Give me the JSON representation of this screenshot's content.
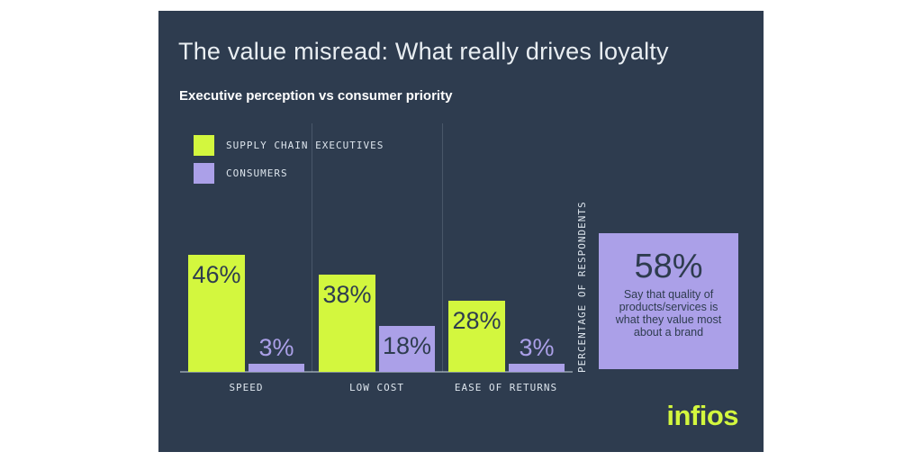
{
  "header": {
    "title": "The value misread: What really drives loyalty",
    "subtitle": "Executive perception vs consumer priority"
  },
  "colors": {
    "card_background": "#2e3c4f",
    "executives_green": "#d3f73e",
    "consumers_purple": "#aba0e8",
    "dark_text": "#2e3c4f",
    "light_text": "#e9eef2"
  },
  "chart_data": {
    "type": "bar",
    "title": "The value misread: What really drives loyalty",
    "subtitle": "Executive perception vs consumer priority",
    "categories": [
      "SPEED",
      "LOW COST",
      "EASE OF RETURNS"
    ],
    "series": [
      {
        "name": "SUPPLY CHAIN EXECUTIVES",
        "color": "#d3f73e",
        "values": [
          46,
          38,
          28
        ]
      },
      {
        "name": "CONSUMERS",
        "color": "#aba0e8",
        "values": [
          3,
          18,
          3
        ]
      }
    ],
    "ylabel": "PERCENTAGE OF RESPONDENTS",
    "value_suffix": "%",
    "ylim": [
      0,
      50
    ],
    "grid": "vertical-category-separators",
    "legend_position": "top-left",
    "value_labels": "on-bars"
  },
  "callout": {
    "value": "58%",
    "text": "Say that quality of products/services is what they value most about a brand",
    "background": "#aba0e8"
  },
  "brand": {
    "logo": "infios",
    "color": "#d3f73e"
  }
}
